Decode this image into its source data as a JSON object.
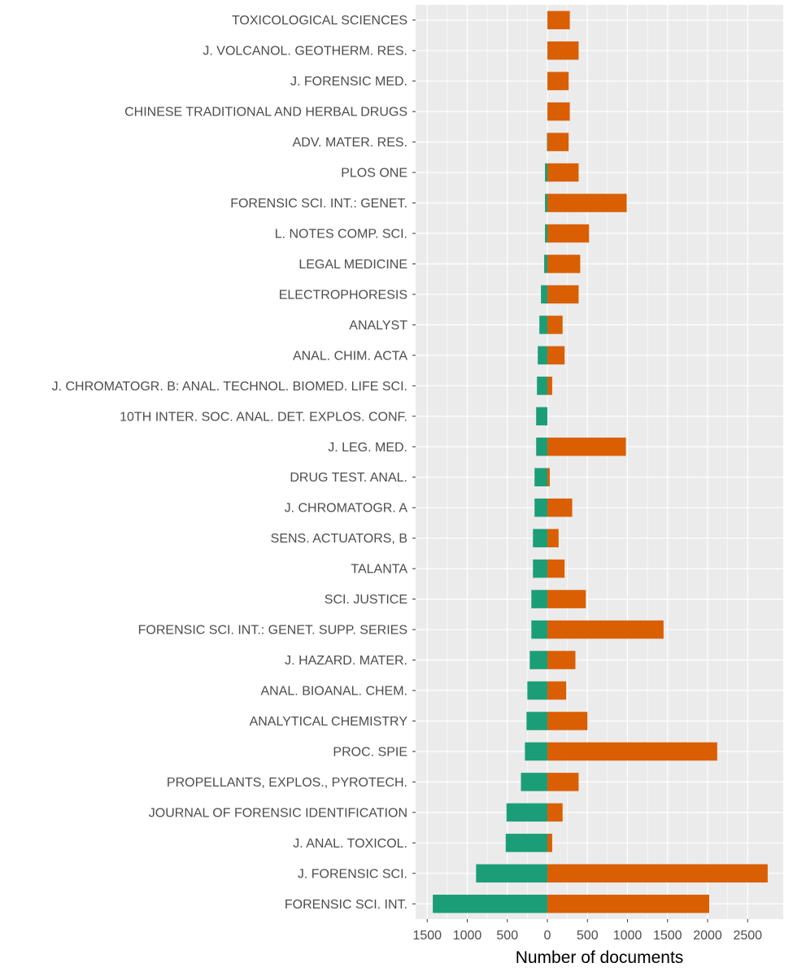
{
  "chart_data": {
    "type": "bar",
    "orientation": "horizontal",
    "diverging": true,
    "xlabel": "Number of documents",
    "ylabel": "",
    "title": "",
    "x_ticks": [
      {
        "value": -1500,
        "label": "1500"
      },
      {
        "value": -1000,
        "label": "1000"
      },
      {
        "value": -500,
        "label": "500"
      },
      {
        "value": 0,
        "label": "0"
      },
      {
        "value": 500,
        "label": "500"
      },
      {
        "value": 1000,
        "label": "1000"
      },
      {
        "value": 1500,
        "label": "1500"
      },
      {
        "value": 2000,
        "label": "2000"
      },
      {
        "value": 2500,
        "label": "2500"
      }
    ],
    "xlim": [
      -1650,
      2920
    ],
    "grid": true,
    "categories": [
      "TOXICOLOGICAL SCIENCES",
      "J. VOLCANOL. GEOTHERM. RES.",
      "J. FORENSIC MED.",
      "CHINESE TRADITIONAL AND HERBAL DRUGS",
      "ADV. MATER. RES.",
      "PLOS ONE",
      "FORENSIC SCI. INT.: GENET.",
      "L. NOTES COMP. SCI.",
      "LEGAL MEDICINE",
      "ELECTROPHORESIS",
      "ANALYST",
      "ANAL. CHIM. ACTA",
      "J. CHROMATOGR. B: ANAL. TECHNOL. BIOMED. LIFE SCI.",
      "10TH INTER. SOC. ANAL. DET. EXPLOS. CONF.",
      "J. LEG. MED.",
      "DRUG TEST. ANAL.",
      "J. CHROMATOGR. A",
      "SENS. ACTUATORS, B",
      "TALANTA",
      "SCI. JUSTICE",
      "FORENSIC SCI. INT.: GENET. SUPP. SERIES",
      "J. HAZARD. MATER.",
      "ANAL. BIOANAL. CHEM.",
      "ANALYTICAL CHEMISTRY",
      "PROC. SPIE",
      "PROPELLANTS, EXPLOS., PYROTECH.",
      "JOURNAL OF FORENSIC IDENTIFICATION",
      "J. ANAL. TOXICOL.",
      "J. FORENSIC SCI.",
      "FORENSIC SCI. INT."
    ],
    "series": [
      {
        "color": "#1b9e77",
        "direction": "left",
        "values": [
          0,
          0,
          0,
          0,
          5,
          30,
          30,
          30,
          40,
          80,
          100,
          120,
          130,
          140,
          140,
          160,
          160,
          180,
          180,
          200,
          200,
          220,
          250,
          260,
          280,
          330,
          510,
          520,
          890,
          1430
        ]
      },
      {
        "color": "#d95f02",
        "direction": "right",
        "values": [
          280,
          390,
          265,
          280,
          265,
          390,
          990,
          520,
          410,
          390,
          190,
          215,
          60,
          0,
          980,
          30,
          310,
          140,
          215,
          480,
          1450,
          350,
          235,
          500,
          2120,
          390,
          190,
          60,
          2750,
          2020
        ]
      }
    ]
  }
}
